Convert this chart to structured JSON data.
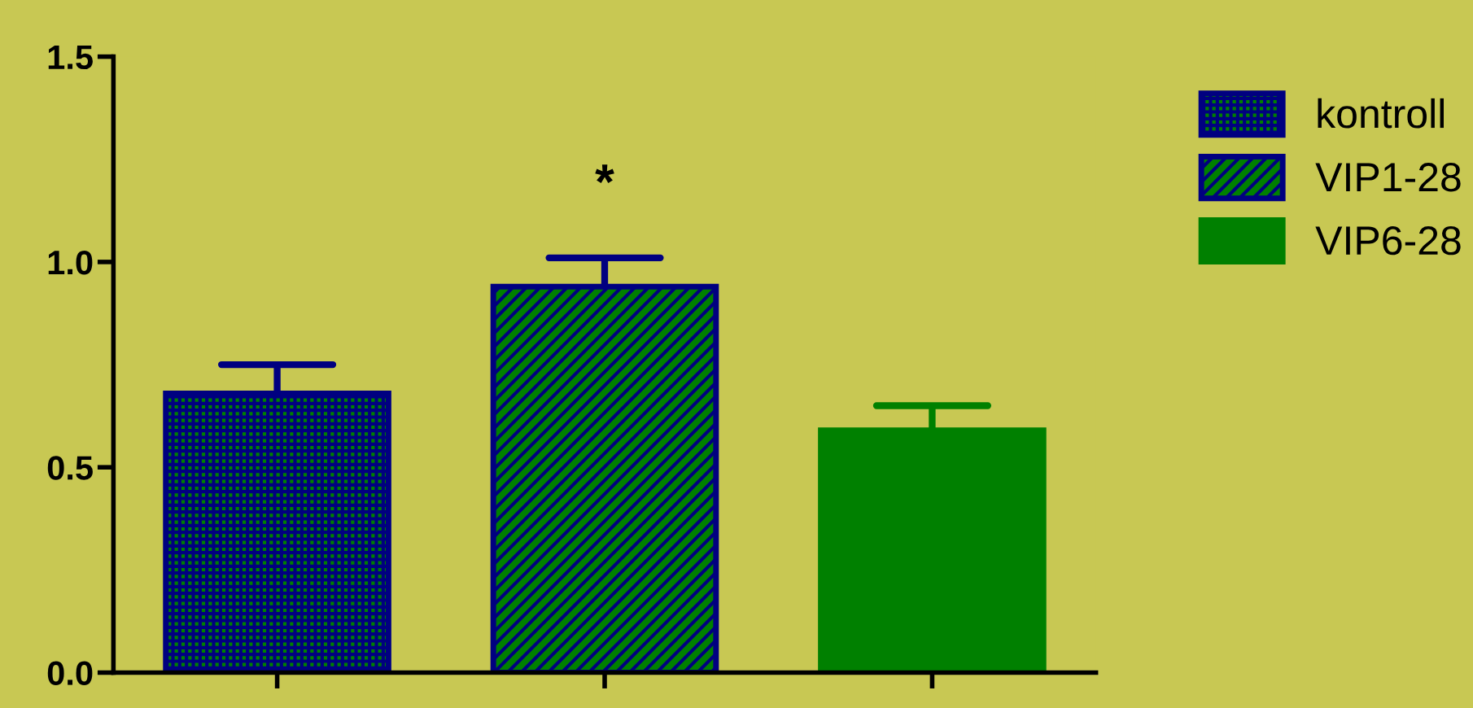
{
  "chart_data": {
    "type": "bar",
    "categories": [
      null,
      null,
      null
    ],
    "series": [
      {
        "name": "kontroll",
        "color": "#000080",
        "values": [
          0.68,
          null,
          null
        ],
        "errors": [
          0.07,
          null,
          null
        ]
      },
      {
        "name": "VIP1-28",
        "color": "#000080",
        "values": [
          null,
          0.94,
          null
        ],
        "errors": [
          null,
          0.07,
          null
        ]
      },
      {
        "name": "VIP6-28",
        "color": "#008000",
        "values": [
          null,
          null,
          0.59
        ],
        "errors": [
          null,
          null,
          0.06
        ]
      }
    ],
    "ylim": [
      0,
      1.5
    ],
    "yticks": [
      {
        "value": 0,
        "label": "0.0"
      },
      {
        "value": 0.5,
        "label": "0.5"
      },
      {
        "value": 1,
        "label": "1.0"
      },
      {
        "value": 1.5,
        "label": "1.5"
      }
    ],
    "annotations": [
      "*"
    ],
    "grid": false,
    "legend": "top right",
    "tick_labels": "y"
  }
}
